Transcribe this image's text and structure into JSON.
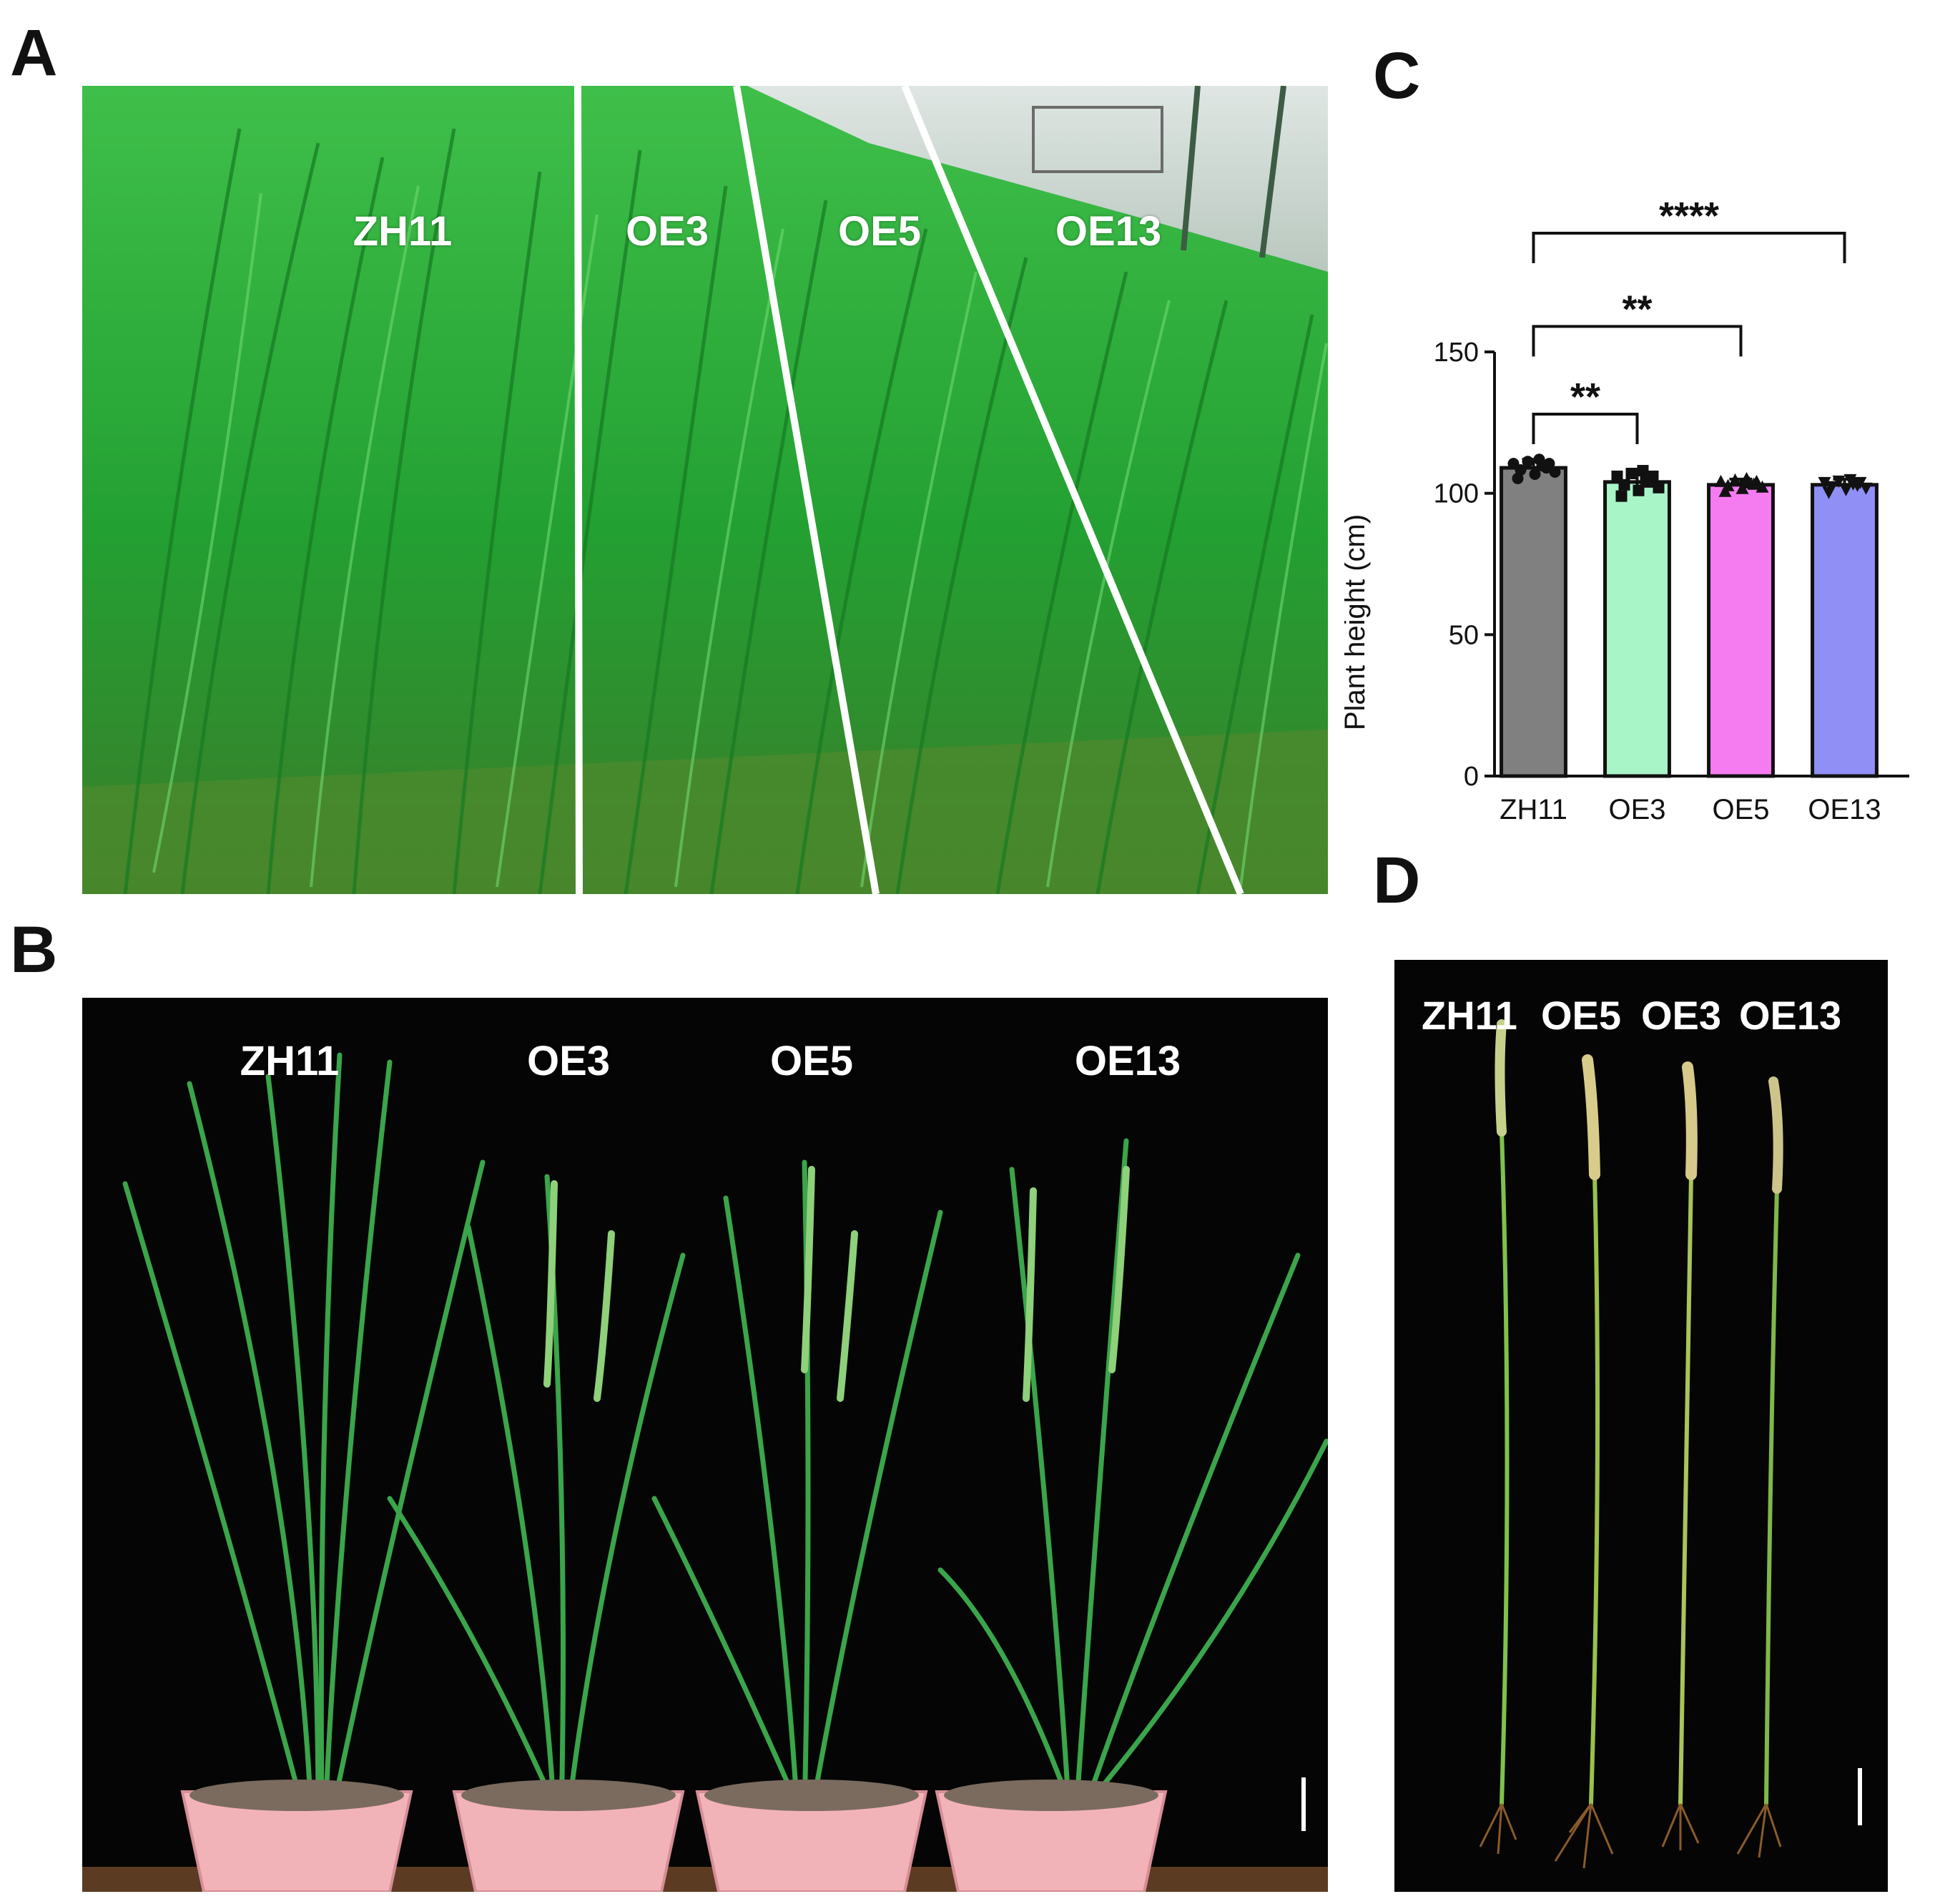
{
  "figure": {
    "panel_letters": {
      "a": "A",
      "b": "B",
      "c": "C",
      "d": "D"
    },
    "panel_a": {
      "labels": [
        "ZH11",
        "OE3",
        "OE5",
        "OE13"
      ]
    },
    "panel_b": {
      "labels": [
        "ZH11",
        "OE3",
        "OE5",
        "OE13"
      ]
    },
    "panel_d": {
      "labels": [
        "ZH11",
        "OE5",
        "OE3",
        "OE13"
      ]
    }
  },
  "colors": {
    "field_green": "#2fa63a",
    "field_dark": "#1d6e24",
    "black_bg": "#050505",
    "pot_pink": "#f2b3b8",
    "bar_zh11": "#808080",
    "bar_oe3": "#a8f5c8",
    "bar_oe5": "#f57cf0",
    "bar_oe13": "#8f8ff5"
  },
  "chart_data": {
    "type": "bar",
    "categories": [
      "ZH11",
      "OE3",
      "OE5",
      "OE13"
    ],
    "values": [
      109,
      104,
      103,
      103
    ],
    "errors": [
      3,
      4,
      2,
      2
    ],
    "bar_colors": [
      "#808080",
      "#a8f5c8",
      "#f57cf0",
      "#8f8ff5"
    ],
    "point_markers": [
      "circle",
      "square",
      "triangle",
      "inverted-triangle"
    ],
    "ylabel": "Plant height (cm)",
    "ylim": [
      0,
      150
    ],
    "yticks": [
      0,
      50,
      100,
      150
    ],
    "significance": [
      {
        "from": "ZH11",
        "to": "OE3",
        "label": "**"
      },
      {
        "from": "ZH11",
        "to": "OE5",
        "label": "**"
      },
      {
        "from": "ZH11",
        "to": "OE13",
        "label": "****"
      }
    ]
  }
}
